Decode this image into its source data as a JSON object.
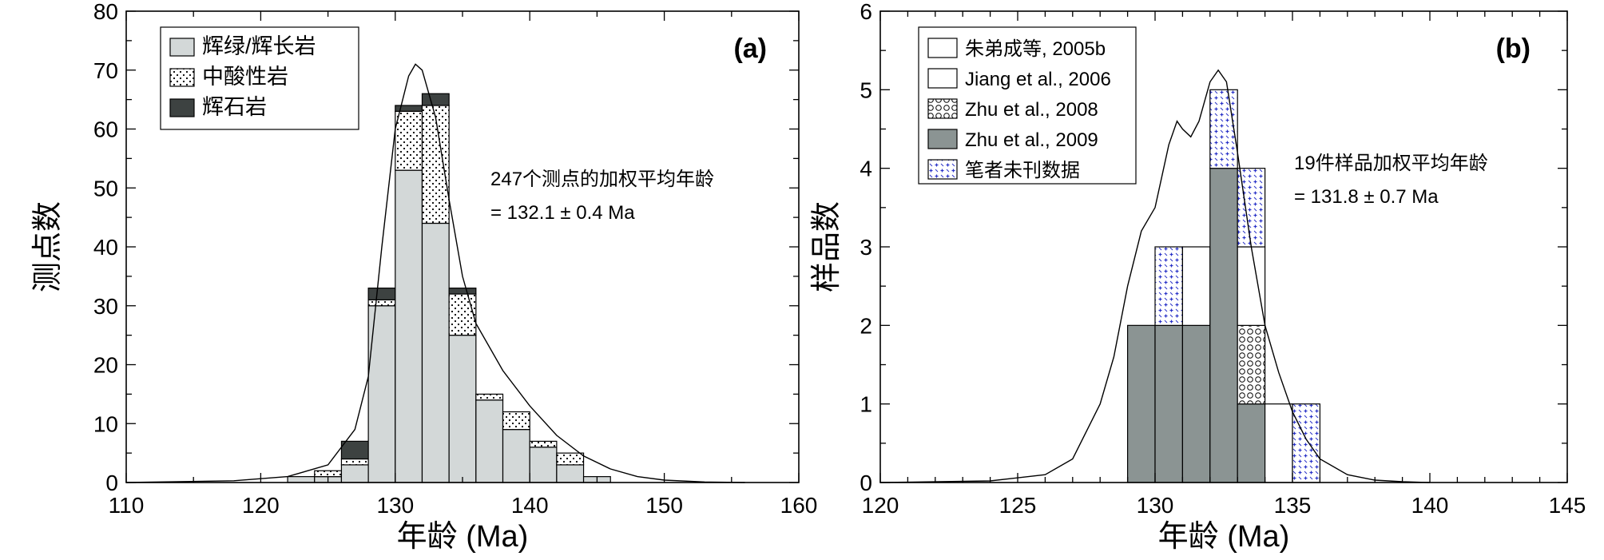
{
  "chart_data": [
    {
      "type": "bar",
      "panel_label": "(a)",
      "xlabel": "年龄 (Ma)",
      "ylabel": "测点数",
      "xlim": [
        110,
        160
      ],
      "ylim": [
        0,
        80
      ],
      "xticks": [
        110,
        120,
        130,
        140,
        150,
        160
      ],
      "yticks": [
        0,
        10,
        20,
        30,
        40,
        50,
        60,
        70,
        80
      ],
      "stacked": true,
      "bin_width": 2,
      "bins_start": [
        122,
        124,
        126,
        128,
        130,
        132,
        134,
        136,
        138,
        140,
        142,
        144
      ],
      "series": [
        {
          "name": "辉绿/辉长岩",
          "pattern": "light-gray",
          "values": [
            1,
            1,
            3,
            30,
            53,
            44,
            25,
            14,
            9,
            6,
            3,
            1
          ]
        },
        {
          "name": "中酸性岩",
          "pattern": "dots",
          "values": [
            0,
            1,
            1,
            1,
            10,
            20,
            7,
            1,
            3,
            1,
            2,
            0
          ]
        },
        {
          "name": "辉石岩",
          "pattern": "dark-gray",
          "values": [
            0,
            0,
            3,
            2,
            1,
            2,
            1,
            0,
            0,
            0,
            0,
            0
          ]
        }
      ],
      "kde_curve": {
        "x": [
          110,
          118,
          122,
          125,
          127,
          128,
          129,
          130,
          131,
          131.5,
          132,
          133,
          134,
          135,
          136,
          138,
          140,
          142,
          144,
          146,
          148,
          150,
          153,
          156
        ],
        "y": [
          0,
          0.3,
          1,
          3,
          9,
          18,
          40,
          60,
          69,
          71,
          70,
          62,
          48,
          35,
          27,
          19,
          13,
          8,
          4.5,
          2.3,
          1,
          0.4,
          0.1,
          0
        ]
      },
      "annotation": [
        "247个测点的加权平均年龄",
        "= 132.1 ± 0.4 Ma"
      ],
      "legend_position": "top-left"
    },
    {
      "type": "bar",
      "panel_label": "(b)",
      "xlabel": "年龄 (Ma)",
      "ylabel": "样品数",
      "xlim": [
        120,
        145
      ],
      "ylim": [
        0,
        6
      ],
      "xticks": [
        120,
        125,
        130,
        135,
        140,
        145
      ],
      "yticks": [
        0,
        1,
        2,
        3,
        4,
        5,
        6
      ],
      "stacked": true,
      "bin_width": 1,
      "bins_start": [
        129,
        130,
        131,
        132,
        133,
        134,
        135
      ],
      "series": [
        {
          "name": "Zhu et al., 2009",
          "pattern": "gray",
          "values": [
            2,
            2,
            2,
            4,
            1,
            0,
            0
          ]
        },
        {
          "name": "Zhu et al., 2008",
          "pattern": "circles",
          "values": [
            0,
            0,
            0,
            0,
            1,
            0,
            0
          ]
        },
        {
          "name": "Jiang et al., 2006",
          "pattern": "white",
          "values": [
            0,
            0,
            1,
            0,
            1,
            1,
            0
          ]
        },
        {
          "name": "笔者未刊数据",
          "pattern": "crosses",
          "values": [
            0,
            1,
            0,
            1,
            1,
            0,
            1
          ]
        },
        {
          "name": "朱弟成等, 2005b",
          "pattern": "white",
          "values": [
            0,
            0,
            0,
            0,
            0,
            0,
            0
          ]
        }
      ],
      "legend_order": [
        "朱弟成等, 2005b",
        "Jiang et al., 2006",
        "Zhu et al., 2008",
        "Zhu et al., 2009",
        "笔者未刊数据"
      ],
      "kde_curve": {
        "x": [
          120,
          124,
          126,
          127,
          128,
          128.5,
          129,
          129.5,
          130,
          130.5,
          130.8,
          131,
          131.3,
          131.6,
          132,
          132.3,
          132.6,
          133,
          133.5,
          134,
          134.5,
          135,
          135.5,
          136,
          137,
          138,
          139,
          140
        ],
        "y": [
          0,
          0.02,
          0.1,
          0.3,
          1.0,
          1.6,
          2.5,
          3.2,
          3.5,
          4.3,
          4.6,
          4.5,
          4.4,
          4.6,
          5.1,
          5.25,
          5.1,
          4.2,
          3.0,
          2.0,
          1.4,
          0.9,
          0.55,
          0.3,
          0.1,
          0.03,
          0.01,
          0
        ]
      },
      "annotation": [
        "19件样品加权平均年龄",
        "= 131.8 ± 0.7 Ma"
      ],
      "legend_position": "top-left"
    }
  ]
}
